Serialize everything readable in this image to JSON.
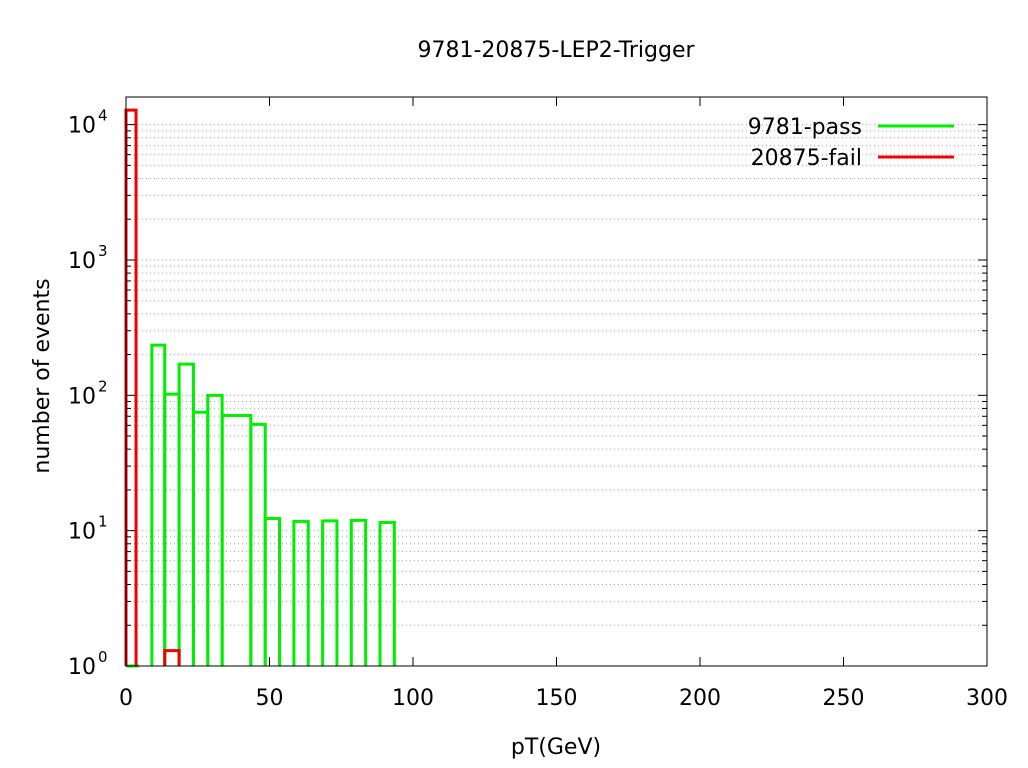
{
  "chart_data": {
    "type": "histogram",
    "title": "9781-20875-LEP2-Trigger",
    "xlabel": "pT(GeV)",
    "ylabel": "number of events",
    "xlim": [
      0,
      300
    ],
    "ylim": [
      1,
      16000
    ],
    "yscale": "log",
    "grid": "horizontal dotted at y ticks and minor log ticks",
    "legend_position": "top-right",
    "x_ticks": [
      "0",
      "50",
      "100",
      "150",
      "200",
      "250",
      "300"
    ],
    "x_tick_values": [
      0,
      50,
      100,
      150,
      200,
      250,
      300
    ],
    "y_ticks": [
      {
        "base": "10",
        "exp": "0",
        "value": 1
      },
      {
        "base": "10",
        "exp": "1",
        "value": 10
      },
      {
        "base": "10",
        "exp": "2",
        "value": 100
      },
      {
        "base": "10",
        "exp": "3",
        "value": 1000
      },
      {
        "base": "10",
        "exp": "4",
        "value": 10000
      }
    ],
    "series": [
      {
        "name": "9781-pass",
        "color": "#00ee00",
        "bins": [
          {
            "x0": 0,
            "x1": 4.5,
            "y": 1
          },
          {
            "x0": 9,
            "x1": 13.5,
            "y": 235
          },
          {
            "x0": 13.5,
            "x1": 18.5,
            "y": 102
          },
          {
            "x0": 18.5,
            "x1": 23.5,
            "y": 170
          },
          {
            "x0": 23.5,
            "x1": 28.5,
            "y": 75
          },
          {
            "x0": 28.5,
            "x1": 33.5,
            "y": 100
          },
          {
            "x0": 33.5,
            "x1": 43.5,
            "y": 71
          },
          {
            "x0": 43.5,
            "x1": 48.5,
            "y": 61
          },
          {
            "x0": 48.5,
            "x1": 53.5,
            "y": 12.3
          },
          {
            "x0": 58.5,
            "x1": 63.5,
            "y": 11.7
          },
          {
            "x0": 68.5,
            "x1": 73.5,
            "y": 11.8
          },
          {
            "x0": 78.5,
            "x1": 83.5,
            "y": 11.9
          },
          {
            "x0": 88.5,
            "x1": 93.5,
            "y": 11.5
          }
        ]
      },
      {
        "name": "20875-fail",
        "color": "#ee0000",
        "bins": [
          {
            "x0": -1,
            "x1": 3.5,
            "y": 12800
          },
          {
            "x0": 13.5,
            "x1": 18.5,
            "y": 1.3
          }
        ]
      }
    ]
  }
}
